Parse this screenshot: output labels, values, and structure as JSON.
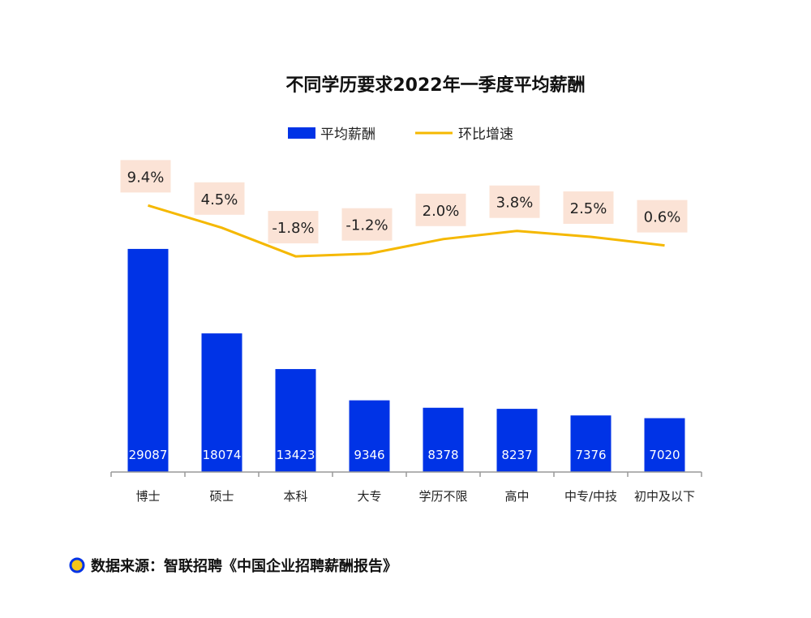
{
  "chart_data": {
    "type": "bar",
    "title": "不同学历要求2022年一季度平均薪酬",
    "categories": [
      "博士",
      "硕士",
      "本科",
      "大专",
      "学历不限",
      "高中",
      "中专/中技",
      "初中及以下"
    ],
    "series": [
      {
        "name": "平均薪酬",
        "type": "bar",
        "color": "#0033e6",
        "values": [
          29087,
          18074,
          13423,
          9346,
          8378,
          8237,
          7376,
          7020
        ]
      },
      {
        "name": "环比增速",
        "type": "line",
        "color": "#f5b800",
        "values": [
          9.4,
          4.5,
          -1.8,
          -1.2,
          2.0,
          3.8,
          2.5,
          0.6
        ],
        "labels": [
          "9.4%",
          "4.5%",
          "-1.8%",
          "-1.2%",
          "2.0%",
          "3.8%",
          "2.5%",
          "0.6%"
        ]
      }
    ],
    "ylim": [
      0,
      35000
    ],
    "y2lim": [
      -5,
      12
    ],
    "legend": "top-center",
    "grid": false,
    "label_bg": "#fbe3d6"
  },
  "source": "数据来源：智联招聘《中国企业招聘薪酬报告》"
}
